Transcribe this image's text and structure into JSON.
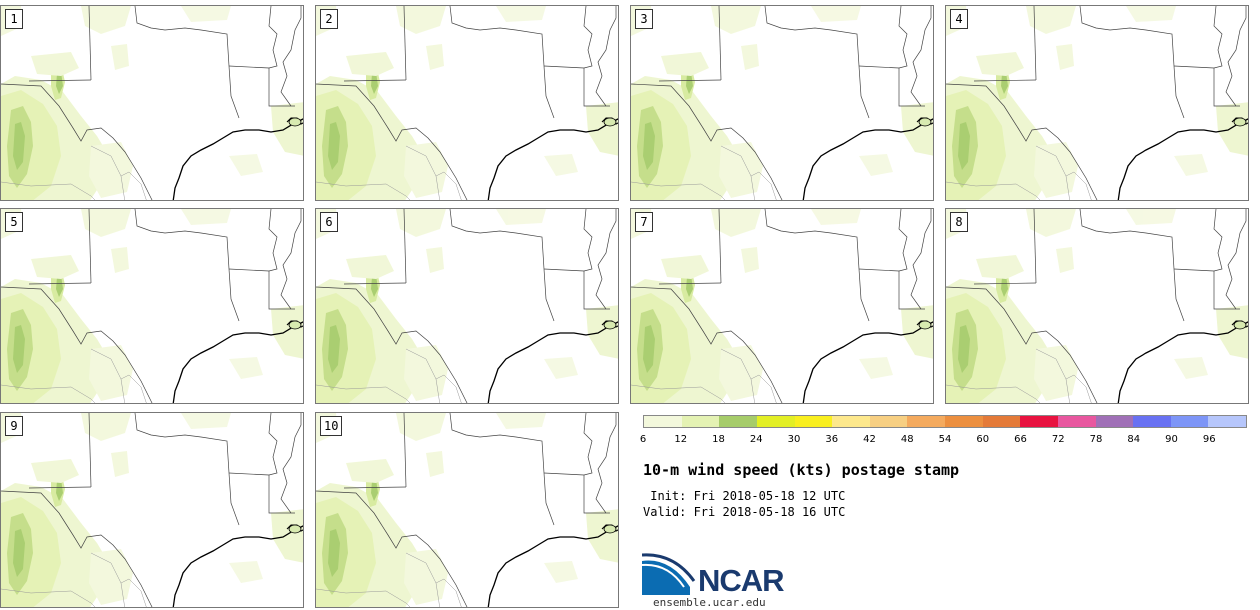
{
  "panels": [
    {
      "label": "1"
    },
    {
      "label": "2"
    },
    {
      "label": "3"
    },
    {
      "label": "4"
    },
    {
      "label": "5"
    },
    {
      "label": "6"
    },
    {
      "label": "7"
    },
    {
      "label": "8"
    },
    {
      "label": "9"
    },
    {
      "label": "10"
    }
  ],
  "legend": {
    "colors": [
      "#f3f8dc",
      "#e4f2b3",
      "#a6cc6a",
      "#e3ef25",
      "#f9ef1f",
      "#fde88c",
      "#f7cf82",
      "#f4aa5e",
      "#ec8f3f",
      "#e47a38",
      "#e81240",
      "#e8579f",
      "#a070b7",
      "#6871f2",
      "#7d95f7",
      "#b6c6fb"
    ],
    "ticks": [
      "6",
      "12",
      "18",
      "24",
      "30",
      "36",
      "42",
      "48",
      "54",
      "60",
      "66",
      "72",
      "78",
      "84",
      "90",
      "96"
    ]
  },
  "title": "10-m wind speed (kts) postage stamp",
  "init": " Init: Fri 2018-05-18 12 UTC",
  "valid": "Valid: Fri 2018-05-18 16 UTC",
  "logo": {
    "text": "NCAR",
    "url": "ensemble.ucar.edu"
  }
}
